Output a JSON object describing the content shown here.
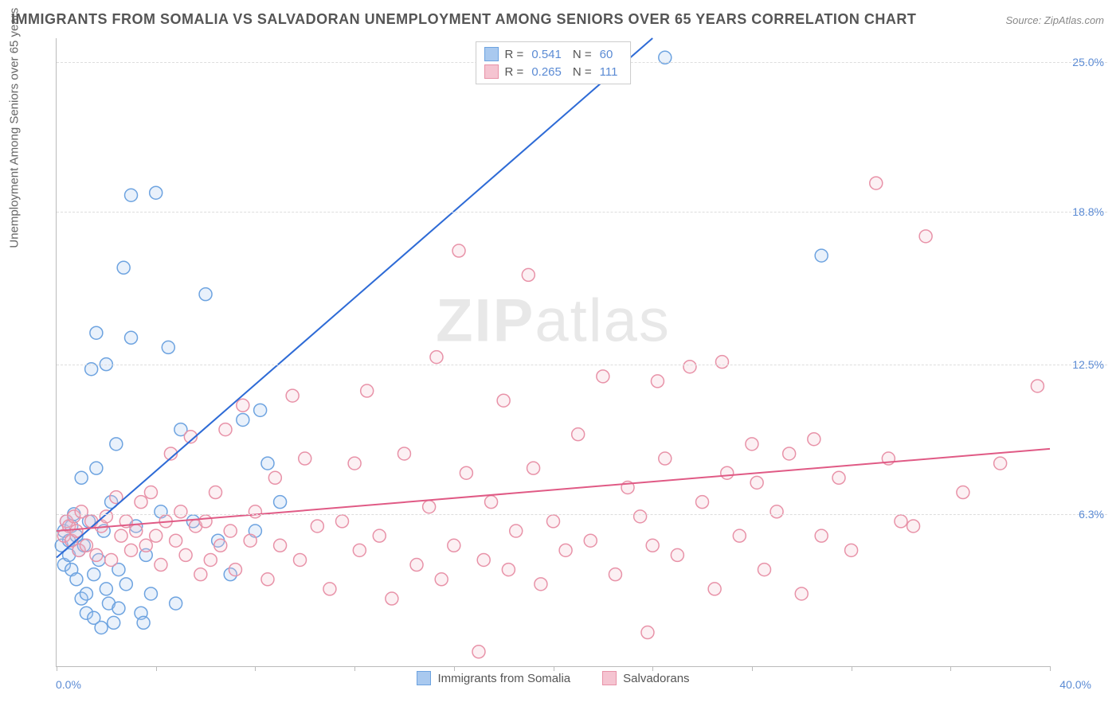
{
  "title": "IMMIGRANTS FROM SOMALIA VS SALVADORAN UNEMPLOYMENT AMONG SENIORS OVER 65 YEARS CORRELATION CHART",
  "source": "Source: ZipAtlas.com",
  "watermark_a": "ZIP",
  "watermark_b": "atlas",
  "chart": {
    "type": "scatter",
    "y_axis_label": "Unemployment Among Seniors over 65 years",
    "x_min_label": "0.0%",
    "x_max_label": "40.0%",
    "xlim": [
      0,
      40
    ],
    "ylim": [
      0,
      26
    ],
    "y_ticks": [
      {
        "pos": 6.3,
        "label": "6.3%"
      },
      {
        "pos": 12.5,
        "label": "12.5%"
      },
      {
        "pos": 18.8,
        "label": "18.8%"
      },
      {
        "pos": 25.0,
        "label": "25.0%"
      }
    ],
    "x_tick_positions": [
      0,
      4,
      8,
      12,
      16,
      20,
      24,
      28,
      32,
      36,
      40
    ],
    "grid_color": "#dddddd",
    "axis_color": "#bbbbbb",
    "background_color": "#ffffff",
    "marker_radius": 8,
    "marker_stroke_width": 1.5,
    "marker_fill_opacity": 0.25,
    "trend_line_width": 2,
    "series": [
      {
        "name": "Immigrants from Somalia",
        "color_stroke": "#6da3e0",
        "color_fill": "#a9c9ef",
        "line_color": "#2e6bd6",
        "r_label": "R =",
        "r_value": "0.541",
        "n_label": "N =",
        "n_value": "60",
        "trend": {
          "x1": 0,
          "y1": 4.5,
          "x2": 24,
          "y2": 26
        },
        "points": [
          [
            0.2,
            5.0
          ],
          [
            0.3,
            5.6
          ],
          [
            0.3,
            4.2
          ],
          [
            0.4,
            6.0
          ],
          [
            0.5,
            5.2
          ],
          [
            0.5,
            4.6
          ],
          [
            0.6,
            5.8
          ],
          [
            0.6,
            4.0
          ],
          [
            0.7,
            6.3
          ],
          [
            0.8,
            5.4
          ],
          [
            0.8,
            3.6
          ],
          [
            0.9,
            4.8
          ],
          [
            1.0,
            7.8
          ],
          [
            1.0,
            2.8
          ],
          [
            1.1,
            5.0
          ],
          [
            1.2,
            3.0
          ],
          [
            1.2,
            2.2
          ],
          [
            1.3,
            6.0
          ],
          [
            1.4,
            12.3
          ],
          [
            1.5,
            3.8
          ],
          [
            1.5,
            2.0
          ],
          [
            1.6,
            8.2
          ],
          [
            1.6,
            13.8
          ],
          [
            1.7,
            4.4
          ],
          [
            1.8,
            1.6
          ],
          [
            1.9,
            5.6
          ],
          [
            2.0,
            12.5
          ],
          [
            2.0,
            3.2
          ],
          [
            2.1,
            2.6
          ],
          [
            2.2,
            6.8
          ],
          [
            2.3,
            1.8
          ],
          [
            2.4,
            9.2
          ],
          [
            2.5,
            4.0
          ],
          [
            2.5,
            2.4
          ],
          [
            2.7,
            16.5
          ],
          [
            2.8,
            3.4
          ],
          [
            3.0,
            13.6
          ],
          [
            3.0,
            19.5
          ],
          [
            3.2,
            5.8
          ],
          [
            3.4,
            2.2
          ],
          [
            3.5,
            1.8
          ],
          [
            3.6,
            4.6
          ],
          [
            3.8,
            3.0
          ],
          [
            4.0,
            19.6
          ],
          [
            4.2,
            6.4
          ],
          [
            4.5,
            13.2
          ],
          [
            4.8,
            2.6
          ],
          [
            5.0,
            9.8
          ],
          [
            5.5,
            6.0
          ],
          [
            6.0,
            15.4
          ],
          [
            6.5,
            5.2
          ],
          [
            7.0,
            3.8
          ],
          [
            7.5,
            10.2
          ],
          [
            8.0,
            5.6
          ],
          [
            8.2,
            10.6
          ],
          [
            8.5,
            8.4
          ],
          [
            9.0,
            6.8
          ],
          [
            24.5,
            25.2
          ],
          [
            30.8,
            17.0
          ]
        ]
      },
      {
        "name": "Salvadorans",
        "color_stroke": "#e892a8",
        "color_fill": "#f5c4d1",
        "line_color": "#e05a85",
        "r_label": "R =",
        "r_value": "0.265",
        "n_label": "N =",
        "n_value": "111",
        "trend": {
          "x1": 0,
          "y1": 5.6,
          "x2": 40,
          "y2": 9.0
        },
        "points": [
          [
            0.3,
            5.4
          ],
          [
            0.4,
            6.0
          ],
          [
            0.5,
            5.8
          ],
          [
            0.6,
            5.2
          ],
          [
            0.7,
            6.2
          ],
          [
            0.8,
            5.6
          ],
          [
            0.9,
            4.8
          ],
          [
            1.0,
            6.4
          ],
          [
            1.2,
            5.0
          ],
          [
            1.4,
            6.0
          ],
          [
            1.6,
            4.6
          ],
          [
            1.8,
            5.8
          ],
          [
            2.0,
            6.2
          ],
          [
            2.2,
            4.4
          ],
          [
            2.4,
            7.0
          ],
          [
            2.6,
            5.4
          ],
          [
            2.8,
            6.0
          ],
          [
            3.0,
            4.8
          ],
          [
            3.2,
            5.6
          ],
          [
            3.4,
            6.8
          ],
          [
            3.6,
            5.0
          ],
          [
            3.8,
            7.2
          ],
          [
            4.0,
            5.4
          ],
          [
            4.2,
            4.2
          ],
          [
            4.4,
            6.0
          ],
          [
            4.6,
            8.8
          ],
          [
            4.8,
            5.2
          ],
          [
            5.0,
            6.4
          ],
          [
            5.2,
            4.6
          ],
          [
            5.4,
            9.5
          ],
          [
            5.6,
            5.8
          ],
          [
            5.8,
            3.8
          ],
          [
            6.0,
            6.0
          ],
          [
            6.2,
            4.4
          ],
          [
            6.4,
            7.2
          ],
          [
            6.6,
            5.0
          ],
          [
            6.8,
            9.8
          ],
          [
            7.0,
            5.6
          ],
          [
            7.2,
            4.0
          ],
          [
            7.5,
            10.8
          ],
          [
            7.8,
            5.2
          ],
          [
            8.0,
            6.4
          ],
          [
            8.5,
            3.6
          ],
          [
            8.8,
            7.8
          ],
          [
            9.0,
            5.0
          ],
          [
            9.5,
            11.2
          ],
          [
            9.8,
            4.4
          ],
          [
            10.0,
            8.6
          ],
          [
            10.5,
            5.8
          ],
          [
            11.0,
            3.2
          ],
          [
            11.5,
            6.0
          ],
          [
            12.0,
            8.4
          ],
          [
            12.2,
            4.8
          ],
          [
            12.5,
            11.4
          ],
          [
            13.0,
            5.4
          ],
          [
            13.5,
            2.8
          ],
          [
            14.0,
            8.8
          ],
          [
            14.5,
            4.2
          ],
          [
            15.0,
            6.6
          ],
          [
            15.3,
            12.8
          ],
          [
            15.5,
            3.6
          ],
          [
            16.0,
            5.0
          ],
          [
            16.2,
            17.2
          ],
          [
            16.5,
            8.0
          ],
          [
            17.0,
            0.6
          ],
          [
            17.2,
            4.4
          ],
          [
            17.5,
            6.8
          ],
          [
            18.0,
            11.0
          ],
          [
            18.2,
            4.0
          ],
          [
            18.5,
            5.6
          ],
          [
            19.0,
            16.2
          ],
          [
            19.2,
            8.2
          ],
          [
            19.5,
            3.4
          ],
          [
            20.0,
            6.0
          ],
          [
            20.5,
            4.8
          ],
          [
            21.0,
            9.6
          ],
          [
            21.5,
            5.2
          ],
          [
            22.0,
            12.0
          ],
          [
            22.5,
            3.8
          ],
          [
            23.0,
            7.4
          ],
          [
            23.5,
            6.2
          ],
          [
            23.8,
            1.4
          ],
          [
            24.0,
            5.0
          ],
          [
            24.2,
            11.8
          ],
          [
            24.5,
            8.6
          ],
          [
            25.0,
            4.6
          ],
          [
            25.5,
            12.4
          ],
          [
            26.0,
            6.8
          ],
          [
            26.5,
            3.2
          ],
          [
            26.8,
            12.6
          ],
          [
            27.0,
            8.0
          ],
          [
            27.5,
            5.4
          ],
          [
            28.0,
            9.2
          ],
          [
            28.2,
            7.6
          ],
          [
            28.5,
            4.0
          ],
          [
            29.0,
            6.4
          ],
          [
            29.5,
            8.8
          ],
          [
            30.0,
            3.0
          ],
          [
            30.5,
            9.4
          ],
          [
            30.8,
            5.4
          ],
          [
            31.5,
            7.8
          ],
          [
            32.0,
            4.8
          ],
          [
            33.0,
            20.0
          ],
          [
            33.5,
            8.6
          ],
          [
            34.0,
            6.0
          ],
          [
            34.5,
            5.8
          ],
          [
            35.0,
            17.8
          ],
          [
            36.5,
            7.2
          ],
          [
            38.0,
            8.4
          ],
          [
            39.5,
            11.6
          ]
        ]
      }
    ]
  }
}
